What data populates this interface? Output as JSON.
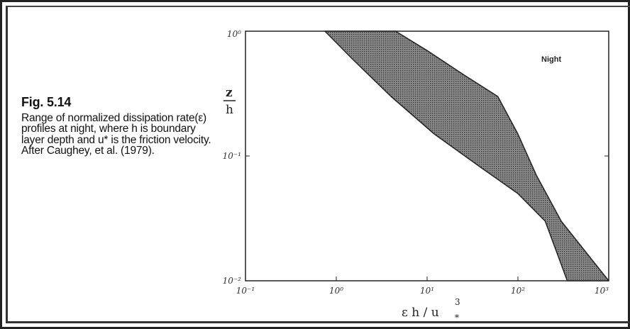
{
  "caption": {
    "title": "Fig. 5.14",
    "text": "Range of normalized dissipation rate(ε) profiles at night, where h is boundary layer depth and u* is the friction velocity. After Caughey, et al. (1979)."
  },
  "chart_data": {
    "type": "area",
    "title": "",
    "xlabel": "ε h / u*³",
    "ylabel": "z/h",
    "xscale": "log",
    "yscale": "log",
    "xlim": [
      0.1,
      1000
    ],
    "ylim": [
      0.01,
      1
    ],
    "x_tick_labels": [
      "10⁻¹",
      "10⁰",
      "10¹",
      "10²",
      "10³"
    ],
    "y_tick_labels": [
      "10⁰",
      "10⁻¹",
      "10⁻²"
    ],
    "annotation": "Night",
    "series": [
      {
        "name": "Night",
        "band": "shaded range",
        "left_edge": [
          [
            0.75,
            1.0
          ],
          [
            1.5,
            0.6
          ],
          [
            4.0,
            0.3
          ],
          [
            12,
            0.15
          ],
          [
            40,
            0.08
          ],
          [
            100,
            0.05
          ],
          [
            200,
            0.03
          ],
          [
            350,
            0.01
          ]
        ],
        "right_edge": [
          [
            4.5,
            1.0
          ],
          [
            10,
            0.7
          ],
          [
            25,
            0.45
          ],
          [
            60,
            0.3
          ],
          [
            100,
            0.15
          ],
          [
            160,
            0.07
          ],
          [
            300,
            0.03
          ],
          [
            1000,
            0.01
          ]
        ]
      }
    ],
    "grid": false,
    "colors": {
      "band_fill": "#555555",
      "band_edge": "#222222"
    }
  }
}
